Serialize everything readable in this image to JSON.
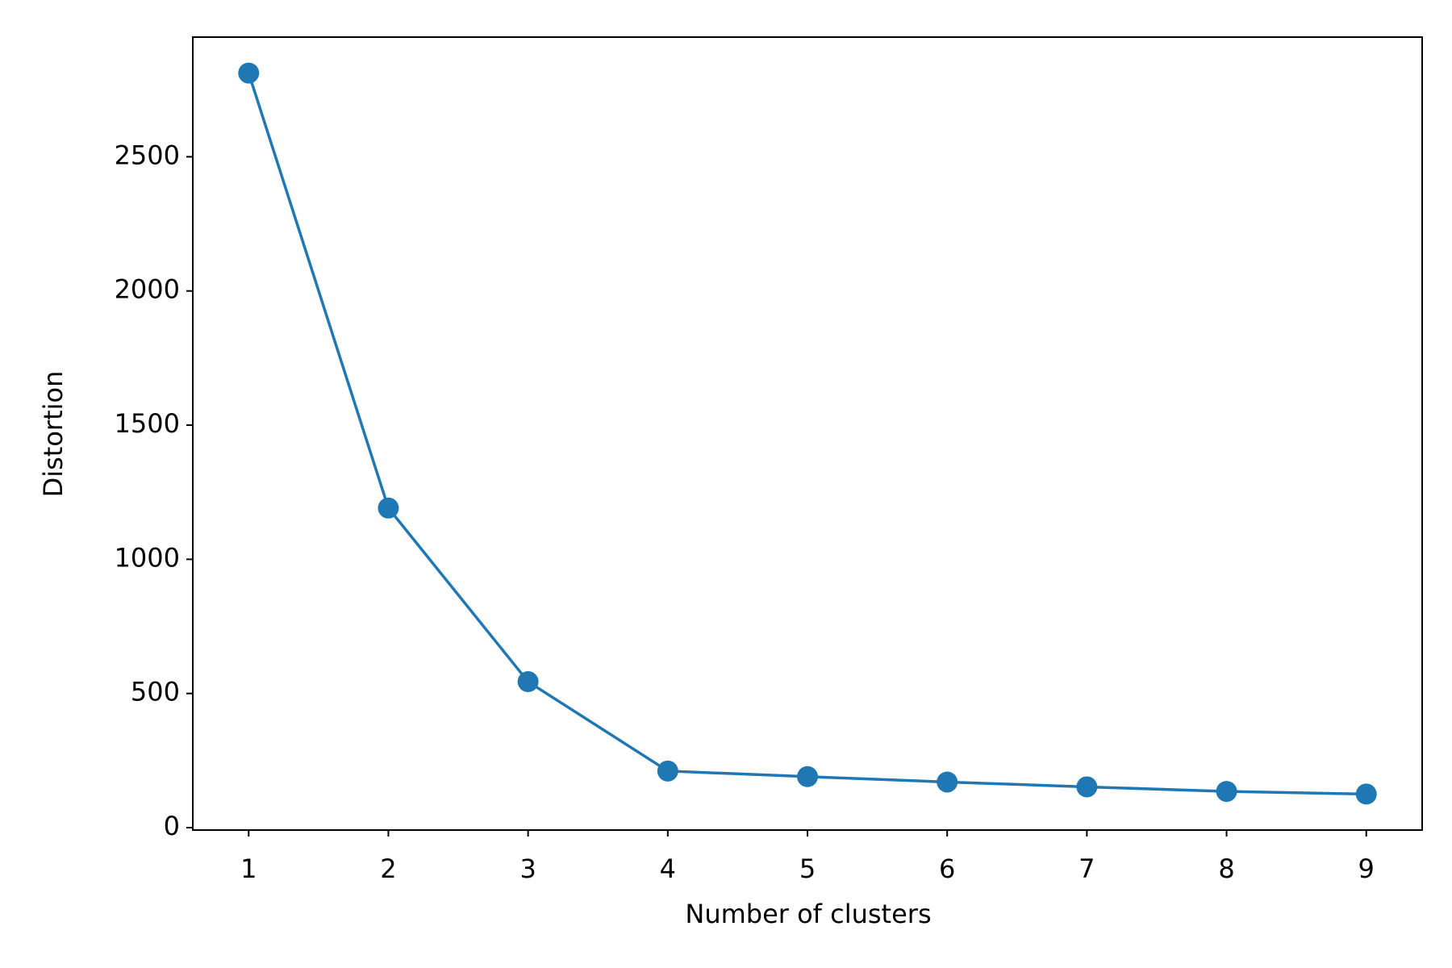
{
  "chart_data": {
    "type": "line",
    "x_label": "Number of clusters",
    "y_label": "Distortion",
    "x": [
      1,
      2,
      3,
      4,
      5,
      6,
      7,
      8,
      9
    ],
    "series": [
      {
        "name": "Distortion",
        "color": "#1f77b4",
        "values": [
          2812,
          1191,
          544,
          211,
          190,
          170,
          152,
          135,
          125
        ]
      }
    ],
    "xlim": [
      0.6,
      9.4
    ],
    "xticks": [
      1,
      2,
      3,
      4,
      5,
      6,
      7,
      8,
      9
    ],
    "ylim": [
      -9,
      2946
    ],
    "yticks": [
      0,
      500,
      1000,
      1500,
      2000,
      2500
    ],
    "grid": false,
    "markers": true
  }
}
